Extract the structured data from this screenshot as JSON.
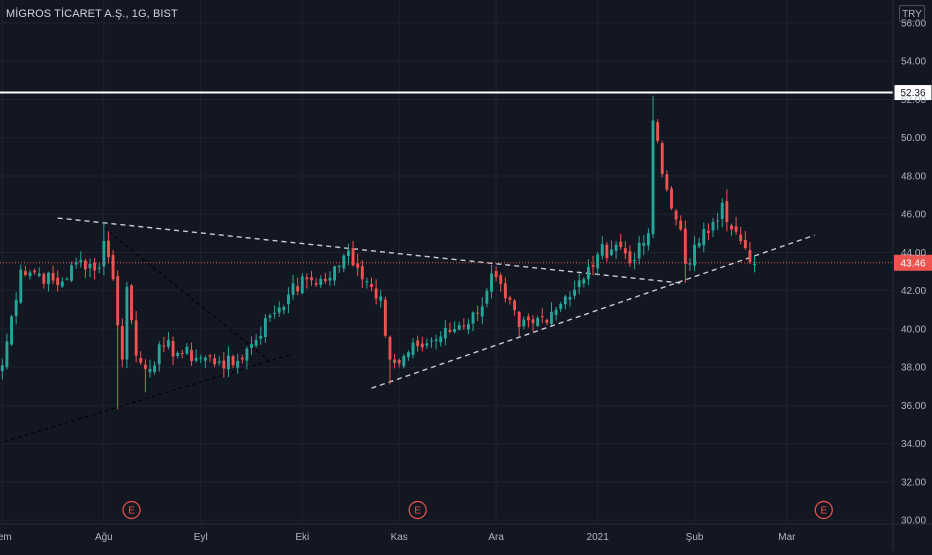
{
  "header": {
    "symbol_title": "MİGROS TİCARET A.Ş., 1G, BIST",
    "currency_badge": "TRY"
  },
  "colors": {
    "background": "#131722",
    "grid": "#1f2330",
    "bull": "#26a69a",
    "bear": "#ef5350",
    "trendline": "#d1d4dc",
    "resistance_line": "#ffffff",
    "current_price_line": "#ef5350",
    "earnings_marker": "#ef5350"
  },
  "chart_data": {
    "type": "candlestick",
    "title": "MİGROS TİCARET A.Ş., 1G, BIST",
    "y_axis": {
      "ticks": [
        30,
        32,
        34,
        36,
        38,
        40,
        42,
        44,
        46,
        48,
        50,
        52,
        54,
        56
      ],
      "tick_labels": [
        "30.00",
        "32.00",
        "34.00",
        "36.00",
        "38.00",
        "40.00",
        "42.00",
        "44.00",
        "46.00",
        "48.00",
        "50.00",
        "52.00",
        "54.00",
        "56.00"
      ],
      "range": [
        29.8,
        57.2
      ],
      "side": "right"
    },
    "x_axis": {
      "labels": [
        {
          "label": "Tem",
          "month": "2020-07",
          "index": 0
        },
        {
          "label": "Ağu",
          "month": "2020-08",
          "index": 22
        },
        {
          "label": "Eyl",
          "month": "2020-09",
          "index": 43
        },
        {
          "label": "Eki",
          "month": "2020-10",
          "index": 65
        },
        {
          "label": "Kas",
          "month": "2020-11",
          "index": 86
        },
        {
          "label": "Ara",
          "month": "2020-12",
          "index": 107
        },
        {
          "label": "2021",
          "month": "2021-01",
          "index": 129
        },
        {
          "label": "Şub",
          "month": "2021-02",
          "index": 150
        },
        {
          "label": "Mar",
          "month": "2021-03",
          "index": 170
        }
      ],
      "range": [
        -0.5,
        193
      ]
    },
    "horizontal_lines": [
      {
        "name": "resistance",
        "value": 52.36,
        "label": "52.36",
        "style": "solid"
      },
      {
        "name": "last-price",
        "value": 43.46,
        "label": "43.46",
        "style": "dotted"
      }
    ],
    "trendlines": [
      {
        "name": "falling-resistance",
        "points": [
          [
            12,
            45.8
          ],
          [
            147,
            42.4
          ]
        ],
        "style": "dashed"
      },
      {
        "name": "rising-support-right",
        "points": [
          [
            80,
            36.9
          ],
          [
            176,
            44.9
          ]
        ],
        "style": "dashed"
      },
      {
        "name": "support-left",
        "points": [
          [
            -1,
            34.0
          ],
          [
            63,
            38.7
          ]
        ],
        "style": "dashed-dark"
      },
      {
        "name": "inner-falling-left",
        "points": [
          [
            22,
            45.3
          ],
          [
            58,
            38.3
          ]
        ],
        "style": "dashed-dark"
      }
    ],
    "earnings_markers": [
      {
        "index": 28,
        "label": "E"
      },
      {
        "index": 90,
        "label": "E"
      },
      {
        "index": 178,
        "label": "E"
      }
    ],
    "anchors": [
      [
        0,
        38.1
      ],
      [
        4,
        43.1
      ],
      [
        8,
        42.9
      ],
      [
        12,
        42.3
      ],
      [
        17,
        43.6
      ],
      [
        21,
        43.2
      ],
      [
        22,
        44.6
      ],
      [
        24,
        42.6
      ],
      [
        26,
        38.4
      ],
      [
        27,
        42.2
      ],
      [
        29,
        38.6
      ],
      [
        31,
        37.9
      ],
      [
        35,
        39.1
      ],
      [
        39,
        38.7
      ],
      [
        43,
        38.5
      ],
      [
        47,
        38.3
      ],
      [
        50,
        38.1
      ],
      [
        54,
        39.2
      ],
      [
        58,
        40.7
      ],
      [
        62,
        41.8
      ],
      [
        66,
        42.6
      ],
      [
        70,
        42.5
      ],
      [
        73,
        43.3
      ],
      [
        75,
        44.1
      ],
      [
        77,
        43.2
      ],
      [
        79,
        42.5
      ],
      [
        82,
        41.7
      ],
      [
        84,
        38.4
      ],
      [
        86,
        38.2
      ],
      [
        90,
        39.1
      ],
      [
        95,
        39.6
      ],
      [
        99,
        40.2
      ],
      [
        103,
        40.8
      ],
      [
        106,
        42.9
      ],
      [
        109,
        41.6
      ],
      [
        112,
        40.1
      ],
      [
        115,
        40.3
      ],
      [
        119,
        40.9
      ],
      [
        122,
        41.7
      ],
      [
        126,
        42.6
      ],
      [
        129,
        43.9
      ],
      [
        133,
        44.4
      ],
      [
        137,
        43.6
      ],
      [
        140,
        45.0
      ],
      [
        141,
        50.9
      ],
      [
        143,
        48.1
      ],
      [
        145,
        46.3
      ],
      [
        147,
        45.2
      ],
      [
        148,
        43.4
      ],
      [
        151,
        44.5
      ],
      [
        154,
        45.6
      ],
      [
        156,
        46.6
      ],
      [
        158,
        45.2
      ],
      [
        160,
        44.6
      ],
      [
        162,
        43.5
      ],
      [
        163,
        43.4
      ]
    ],
    "extremes": [
      {
        "index": 22,
        "high": 45.6
      },
      {
        "index": 25,
        "low": 35.8
      },
      {
        "index": 141,
        "high": 52.2
      },
      {
        "index": 31,
        "low": 36.7
      },
      {
        "index": 84,
        "low": 37.1
      },
      {
        "index": 148,
        "low": 42.4
      },
      {
        "index": 76,
        "high": 44.6
      },
      {
        "index": 157,
        "high": 47.3
      }
    ]
  }
}
